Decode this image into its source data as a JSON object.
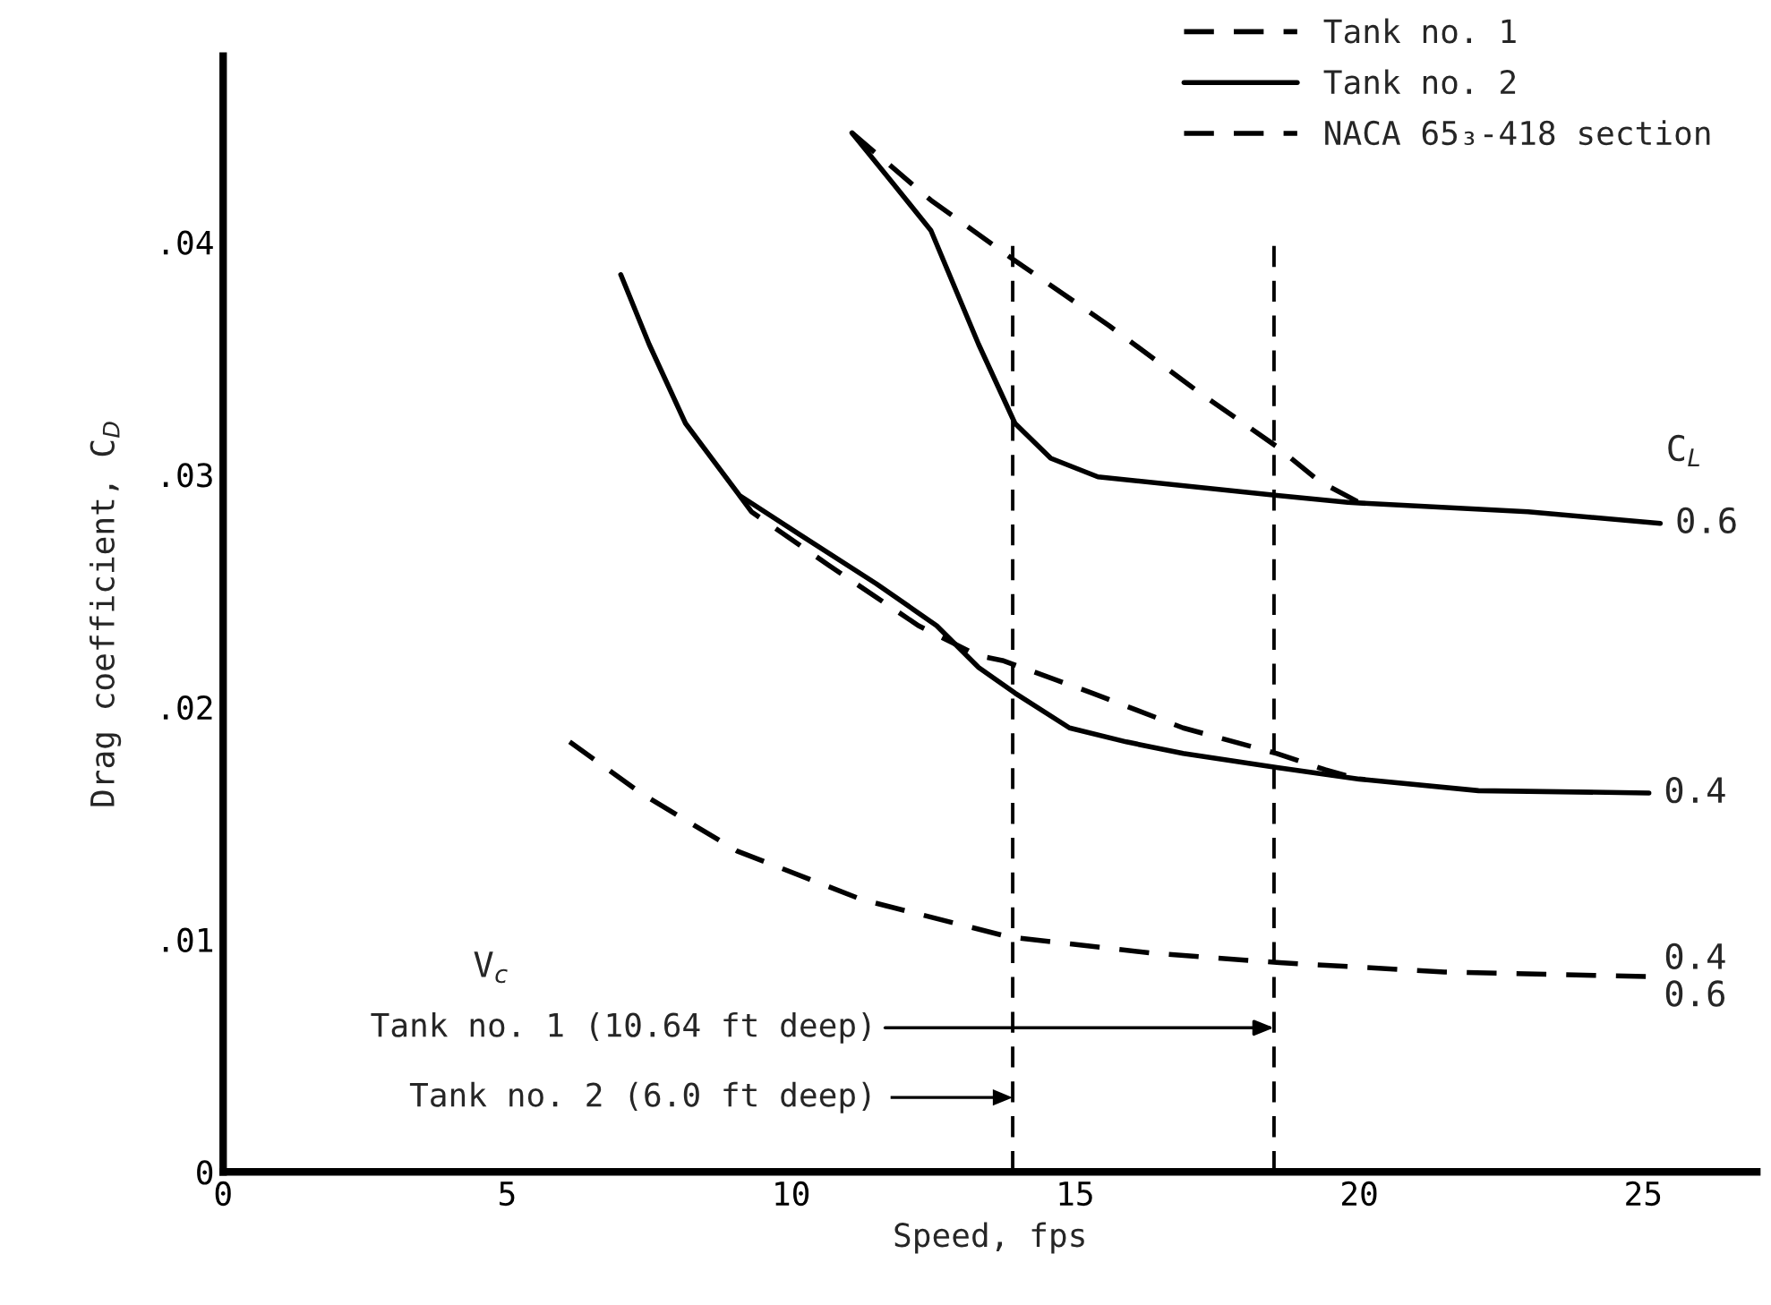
{
  "chart_data": {
    "type": "line",
    "xlabel": "Speed, fps",
    "ylabel": "Drag coefficient, C$_{D}$",
    "xlim": [
      0,
      27
    ],
    "ylim": [
      0,
      0.048
    ],
    "xticks": [
      0,
      5,
      10,
      15,
      20,
      25
    ],
    "yticks": [
      0,
      {
        "value": 0.01,
        "label": ".01"
      },
      {
        "value": 0.02,
        "label": ".02"
      },
      {
        "value": 0.03,
        "label": ".03"
      },
      {
        "value": 0.04,
        "label": ".04"
      }
    ],
    "grid": false,
    "legend": "top right",
    "marker": "none",
    "series": [
      {
        "name": "Tank no. 1",
        "color": "#000000",
        "line_style": "dashed",
        "x": [
          11.07,
          12.46,
          13.94,
          15.6,
          17.2,
          18.55,
          19.3,
          20.0
        ],
        "values": [
          0.0447,
          0.0418,
          0.0392,
          0.0364,
          0.0335,
          0.0312,
          0.0297,
          0.0288
        ]
      },
      {
        "name": "Tank no. 2",
        "color": "#000000",
        "line_style": "solid",
        "x": [
          11.07,
          11.8,
          12.46,
          13.3,
          13.94,
          14.57,
          15.4,
          18.55,
          19.8,
          22.97,
          25.3
        ],
        "values": [
          0.0447,
          0.0425,
          0.0405,
          0.0356,
          0.0322,
          0.0307,
          0.0299,
          0.0291,
          0.0288,
          0.0284,
          0.0279
        ]
      },
      {
        "color": "#000000",
        "line_style": "dashed",
        "x": [
          9.09,
          9.3,
          10.66,
          12.24,
          13.3,
          13.72,
          15.3,
          16.9,
          18.55,
          19.4,
          20.0
        ],
        "values": [
          0.0291,
          0.0284,
          0.0261,
          0.0235,
          0.0222,
          0.022,
          0.0206,
          0.0191,
          0.018,
          0.0173,
          0.0169
        ]
      },
      {
        "color": "#000000",
        "line_style": "solid",
        "x": [
          7.0,
          7.5,
          8.14,
          9.09,
          10.16,
          11.5,
          12.56,
          13.3,
          13.94,
          14.9,
          15.9,
          16.9,
          18.55,
          20.0,
          22.1,
          25.1
        ],
        "values": [
          0.0386,
          0.0356,
          0.0322,
          0.0291,
          0.0274,
          0.0253,
          0.0235,
          0.0217,
          0.0206,
          0.0191,
          0.0185,
          0.018,
          0.0174,
          0.0169,
          0.0164,
          0.0163
        ]
      },
      {
        "name": "NACA 65₃-418 section",
        "color": "#000000",
        "line_style": "dashed",
        "x": [
          6.1,
          7.35,
          9.05,
          11.26,
          13.85,
          16.4,
          18.6,
          21.5,
          25.1
        ],
        "values": [
          0.0185,
          0.0163,
          0.0138,
          0.0117,
          0.0101,
          0.0094,
          0.009,
          0.0086,
          0.0084
        ]
      }
    ],
    "ref_lines": [
      {
        "axis": "x",
        "value": 13.9,
        "color": "#000000",
        "line_style": "dashed"
      },
      {
        "axis": "x",
        "value": 18.5,
        "color": "#000000",
        "line_style": "dashed"
      }
    ],
    "annotations": [
      "C$_{L}$",
      "V$_{c}$",
      {
        "text": "0.6",
        "x": 25.3,
        "y": 0.0279
      },
      {
        "text": "0.4",
        "x": 25.1,
        "y": 0.0163
      },
      {
        "text": "0.4",
        "x": 25.1,
        "y": 0.0084
      },
      {
        "text": "0.6",
        "x": 25.1,
        "y": 0.0084
      },
      {
        "text": "Tank no. 1 (10.64 ft deep)",
        "x": 18.5,
        "y": 0.0062
      },
      "Tank no. 2 (6.0 ft deep)"
    ]
  }
}
